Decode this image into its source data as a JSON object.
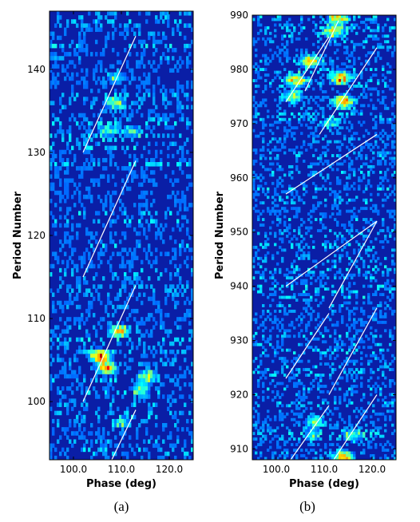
{
  "chart_data": [
    {
      "type": "heatmap",
      "panel_label": "(a)",
      "xlabel": "Phase (deg)",
      "ylabel": "Period Number",
      "xlim": [
        95,
        125
      ],
      "ylim": [
        93,
        147
      ],
      "x_ticks": [
        100.0,
        110.0,
        120.0
      ],
      "x_tick_labels": [
        "100.0",
        "110.0",
        "120.0"
      ],
      "y_ticks": [
        100,
        110,
        120,
        130,
        140
      ],
      "colormap": "jet",
      "background_color": "#0a1ea6",
      "hotspots": [
        {
          "phase": 105.5,
          "period": 105.5,
          "intensity": 1.0
        },
        {
          "phase": 107.0,
          "period": 104.0,
          "intensity": 0.75
        },
        {
          "phase": 109.5,
          "period": 108.5,
          "intensity": 0.7
        },
        {
          "phase": 115.5,
          "period": 103.0,
          "intensity": 0.6
        },
        {
          "phase": 114.0,
          "period": 101.5,
          "intensity": 0.45
        },
        {
          "phase": 108.5,
          "period": 136.0,
          "intensity": 0.55
        },
        {
          "phase": 109.0,
          "period": 139.0,
          "intensity": 0.4
        },
        {
          "phase": 107.0,
          "period": 132.5,
          "intensity": 0.4
        },
        {
          "phase": 112.0,
          "period": 132.5,
          "intensity": 0.35
        },
        {
          "phase": 110.0,
          "period": 97.5,
          "intensity": 0.35
        }
      ],
      "drift_lines": [
        {
          "x": [
            102.0,
            113.0
          ],
          "y": [
            130.0,
            144.0
          ]
        },
        {
          "x": [
            102.0,
            113.0
          ],
          "y": [
            115.0,
            129.0
          ]
        },
        {
          "x": [
            102.0,
            113.0
          ],
          "y": [
            100.0,
            114.0
          ]
        },
        {
          "x": [
            108.0,
            113.0
          ],
          "y": [
            93.0,
            99.0
          ]
        }
      ]
    },
    {
      "type": "heatmap",
      "panel_label": "(b)",
      "xlabel": "Phase (deg)",
      "ylabel": "Period Number",
      "xlim": [
        95,
        125
      ],
      "ylim": [
        908,
        990
      ],
      "x_ticks": [
        100.0,
        110.0,
        120.0
      ],
      "x_tick_labels": [
        "100.0",
        "110.0",
        "120.0"
      ],
      "y_ticks": [
        910,
        920,
        930,
        940,
        950,
        960,
        970,
        980,
        990
      ],
      "colormap": "jet",
      "background_color": "#0a1ea6",
      "hotspots": [
        {
          "phase": 114.0,
          "period": 974.0,
          "intensity": 0.85
        },
        {
          "phase": 113.5,
          "period": 978.5,
          "intensity": 0.9
        },
        {
          "phase": 107.0,
          "period": 981.5,
          "intensity": 0.7
        },
        {
          "phase": 104.0,
          "period": 978.0,
          "intensity": 0.75
        },
        {
          "phase": 103.5,
          "period": 975.0,
          "intensity": 0.55
        },
        {
          "phase": 112.0,
          "period": 987.0,
          "intensity": 0.7
        },
        {
          "phase": 113.0,
          "period": 989.5,
          "intensity": 0.65
        },
        {
          "phase": 108.0,
          "period": 915.0,
          "intensity": 0.45
        },
        {
          "phase": 107.5,
          "period": 912.5,
          "intensity": 0.35
        },
        {
          "phase": 116.0,
          "period": 912.5,
          "intensity": 0.45
        },
        {
          "phase": 114.0,
          "period": 908.5,
          "intensity": 0.85
        },
        {
          "phase": 111.0,
          "period": 970.0,
          "intensity": 0.3
        }
      ],
      "drift_lines": [
        {
          "x": [
            102.0,
            111.0
          ],
          "y": [
            974.0,
            986.0
          ]
        },
        {
          "x": [
            106.0,
            113.0
          ],
          "y": [
            976.0,
            989.0
          ]
        },
        {
          "x": [
            109.0,
            121.0
          ],
          "y": [
            968.0,
            984.0
          ]
        },
        {
          "x": [
            102.0,
            121.0
          ],
          "y": [
            957.0,
            968.0
          ]
        },
        {
          "x": [
            102.0,
            121.0
          ],
          "y": [
            940.0,
            952.0
          ]
        },
        {
          "x": [
            111.0,
            121.0
          ],
          "y": [
            936.0,
            952.0
          ]
        },
        {
          "x": [
            102.0,
            111.0
          ],
          "y": [
            923.0,
            935.0
          ]
        },
        {
          "x": [
            111.0,
            121.0
          ],
          "y": [
            920.0,
            936.0
          ]
        },
        {
          "x": [
            103.0,
            111.0
          ],
          "y": [
            908.0,
            918.0
          ]
        },
        {
          "x": [
            112.0,
            121.0
          ],
          "y": [
            908.0,
            920.0
          ]
        }
      ]
    }
  ]
}
